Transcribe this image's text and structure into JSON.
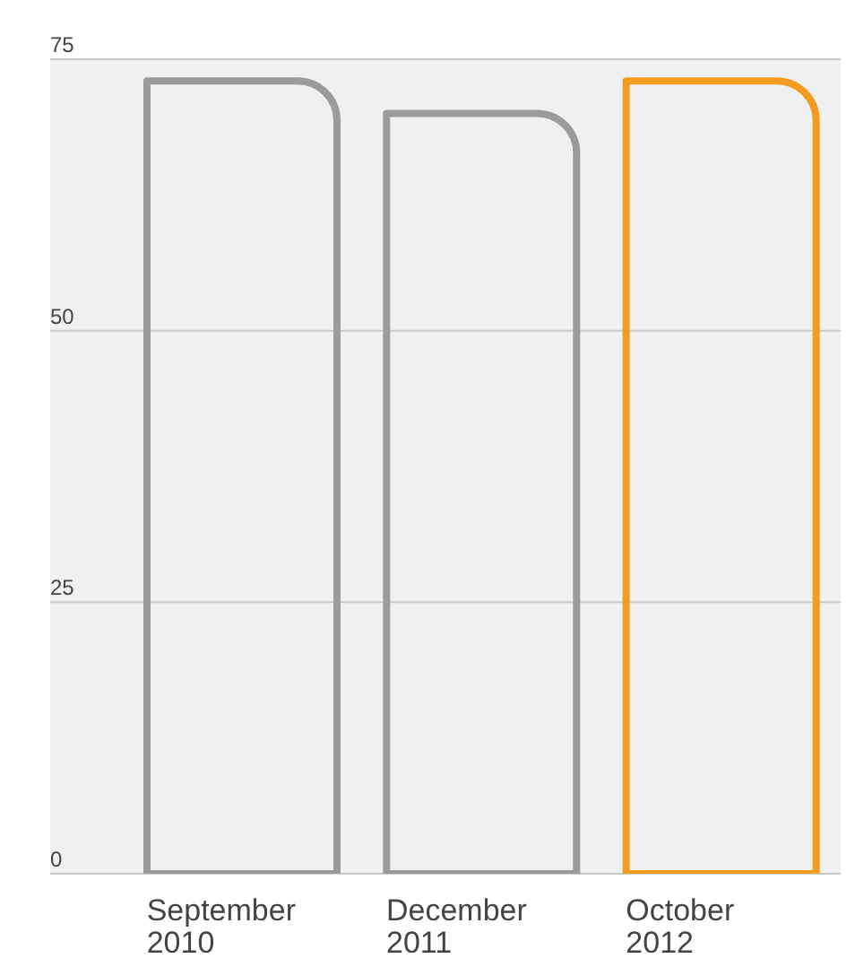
{
  "chart_data": {
    "type": "bar",
    "categories": [
      "September 2010",
      "December 2011",
      "October 2012"
    ],
    "values": [
      73,
      70,
      73
    ],
    "colors": [
      "#9b9b9b",
      "#9b9b9b",
      "#f39c1f"
    ],
    "ylim": [
      0,
      75
    ],
    "yticks": [
      0,
      25,
      50,
      75
    ],
    "grid": "y"
  }
}
